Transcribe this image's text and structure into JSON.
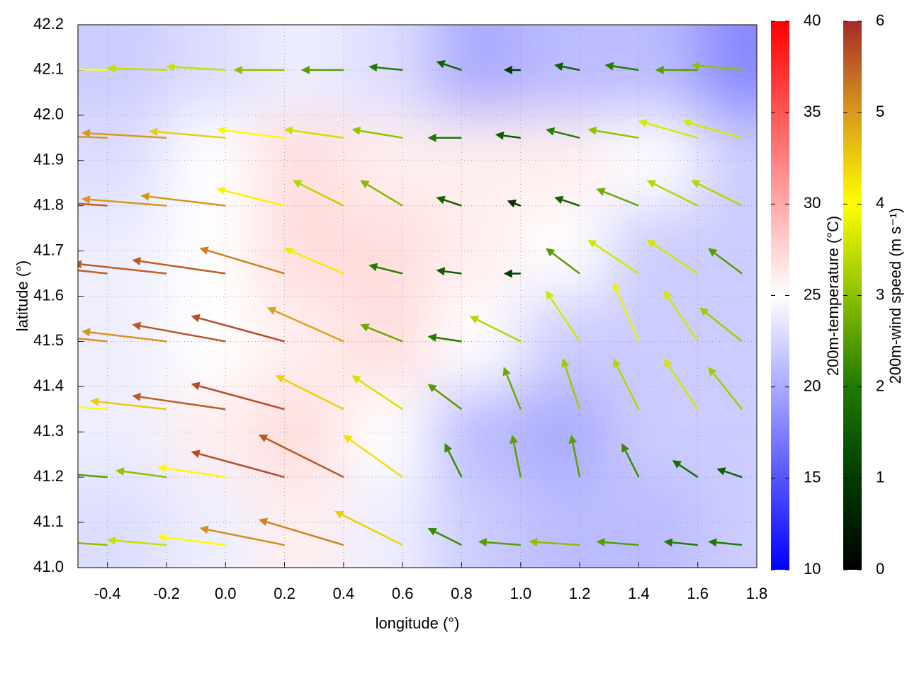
{
  "chart_data": {
    "type": "quiver",
    "xlabel": "longitude (°)",
    "ylabel": "latitude (°)",
    "xlim": [
      -0.5,
      1.8
    ],
    "ylim": [
      41.0,
      42.2
    ],
    "xticks": [
      -0.4,
      -0.2,
      {
        "value": 0,
        "label": "0.0"
      },
      0.2,
      0.4,
      0.6,
      0.8,
      {
        "value": 1,
        "label": "1.0"
      },
      1.2,
      1.4,
      1.6,
      1.8
    ],
    "yticks": [
      {
        "value": 41,
        "label": "41.0"
      },
      41.1,
      41.2,
      41.3,
      41.4,
      41.5,
      41.6,
      41.7,
      41.8,
      41.9,
      {
        "value": 42,
        "label": "42.0"
      },
      42.1,
      42.2
    ],
    "grid": true,
    "field": {
      "lon_edges": [
        -0.5,
        -0.2,
        0.1,
        0.4,
        0.7,
        1.0,
        1.3,
        1.6,
        1.8
      ],
      "lat_edges": [
        41.0,
        41.2,
        41.4,
        41.6,
        41.8,
        42.0,
        42.2
      ],
      "values": [
        [
          23,
          24,
          26,
          24,
          22,
          21,
          21,
          22
        ],
        [
          24,
          26,
          27,
          25,
          21,
          20,
          22,
          22
        ],
        [
          24,
          25,
          26,
          27,
          25,
          22,
          22,
          22
        ],
        [
          24,
          25,
          27,
          27,
          26,
          25,
          22,
          22
        ],
        [
          23,
          25,
          27,
          26,
          26,
          26,
          25,
          22
        ],
        [
          22,
          23,
          24,
          23,
          20,
          21,
          21,
          18
        ]
      ],
      "cmap": [
        "#0000ff",
        "#ffffff",
        "#ff0000"
      ],
      "clim": [
        10,
        40
      ],
      "cticks": [
        10,
        15,
        20,
        25,
        30,
        35,
        40
      ],
      "clabel": "200m-temperature (°C)"
    },
    "wind": {
      "lon": [
        -0.4,
        -0.2,
        0,
        0.2,
        0.4,
        0.6,
        0.8,
        1.0,
        1.2,
        1.4,
        1.6,
        1.75
      ],
      "lat": [
        41.05,
        41.2,
        41.35,
        41.5,
        41.65,
        41.8,
        41.95,
        42.1
      ],
      "u": [
        [
          -3,
          -3.5,
          -4,
          -5,
          -5,
          -4,
          -2,
          -2.5,
          -3,
          -2.5,
          -2,
          -2
        ],
        [
          -2.5,
          -3,
          -4,
          -5.5,
          -5,
          -3.5,
          -1,
          -0.5,
          -0.5,
          -1,
          -1.5,
          -1.5
        ],
        [
          -4,
          -4.5,
          -5.5,
          -5.5,
          -4,
          -3,
          -2,
          -1,
          -1,
          -1.5,
          -2,
          -2
        ],
        [
          -5,
          -5,
          -5.5,
          -5.5,
          -4.5,
          -2.5,
          -2,
          -3,
          -2,
          -1.5,
          -2,
          -2.5
        ],
        [
          -5.5,
          -5.5,
          -5.5,
          -5,
          -3.5,
          -2,
          -1.5,
          -1,
          -2,
          -3,
          -3,
          -2
        ],
        [
          -5.5,
          -5,
          -5,
          -4,
          -3,
          -2.5,
          -1.5,
          -0.8,
          -1.5,
          -2.5,
          -3,
          -3
        ],
        [
          -5,
          -5,
          -4.5,
          -4,
          -3.5,
          -3,
          -2,
          -1.5,
          -2,
          -3,
          -3.5,
          -3.5
        ],
        [
          -4,
          -3.5,
          -3.5,
          -3,
          -2.5,
          -2,
          -1.5,
          -1,
          -1.5,
          -2,
          -2.5,
          -3
        ]
      ],
      "v": [
        [
          0.2,
          0.3,
          0.5,
          1,
          1.5,
          2,
          1,
          0.2,
          0.2,
          0.2,
          0.2,
          0.2
        ],
        [
          0.2,
          0.4,
          0.6,
          1.5,
          2.5,
          2.5,
          2,
          2.5,
          2.5,
          2,
          1,
          0.5
        ],
        [
          0.3,
          0.5,
          0.8,
          1.5,
          2,
          2,
          1.5,
          2.5,
          3,
          3,
          3,
          2.5
        ],
        [
          0.5,
          0.6,
          1,
          1.5,
          2,
          1,
          0.3,
          1.5,
          3,
          3.5,
          3,
          2
        ],
        [
          0.6,
          0.6,
          0.8,
          1.5,
          1.5,
          0.5,
          0.2,
          0,
          1.5,
          2,
          2,
          1.5
        ],
        [
          0.4,
          0.4,
          0.6,
          1,
          1.5,
          1.5,
          0.5,
          0.3,
          0.5,
          1,
          1.5,
          1.5
        ],
        [
          0.2,
          0.3,
          0.4,
          0.5,
          0.5,
          0.5,
          0,
          0.2,
          0.5,
          0.5,
          1,
          1
        ],
        [
          0.1,
          0.1,
          0.2,
          0,
          0,
          0.2,
          0.5,
          0,
          0.3,
          0.3,
          0,
          0.3
        ]
      ],
      "cmap": [
        "#000000",
        "#003c00",
        "#1f7a00",
        "#8dc000",
        "#ffff00",
        "#d89a1c",
        "#a52a2a"
      ],
      "clim": [
        0,
        6
      ],
      "cticks": [
        0,
        1,
        2,
        3,
        4,
        5,
        6
      ],
      "clabel": "200m-wind speed (m s⁻¹)"
    }
  }
}
